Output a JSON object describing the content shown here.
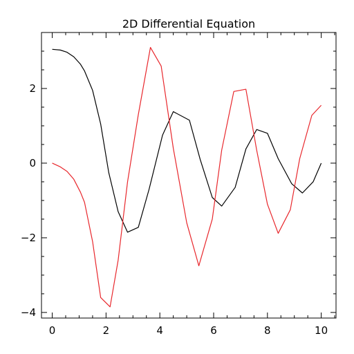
{
  "chart_data": {
    "type": "line",
    "title": "2D Differential Equation",
    "xlabel": "",
    "ylabel": "",
    "xlim": [
      -0.4,
      10.55
    ],
    "ylim": [
      -4.15,
      3.5
    ],
    "xticks": [
      0,
      2,
      4,
      6,
      8,
      10
    ],
    "xtick_labels": [
      "0",
      "2",
      "4",
      "6",
      "8",
      "10"
    ],
    "yticks": [
      -4,
      -2,
      0,
      2
    ],
    "ytick_labels": [
      "−4",
      "−2",
      "0",
      "2"
    ],
    "x_minor_step": 0.5,
    "y_minor_step": 0.5,
    "grid": false,
    "series": [
      {
        "color": "#000000",
        "x": [
          0,
          0.3,
          0.55,
          0.8,
          1.05,
          1.2,
          1.5,
          1.8,
          2.1,
          2.45,
          2.8,
          3.2,
          3.6,
          4.1,
          4.5,
          5.1,
          5.5,
          5.95,
          6.3,
          6.8,
          7.2,
          7.6,
          8.0,
          8.4,
          8.9,
          9.3,
          9.7,
          10.0
        ],
        "y": [
          3.05,
          3.03,
          2.97,
          2.85,
          2.65,
          2.47,
          1.95,
          1.05,
          -0.25,
          -1.3,
          -1.85,
          -1.72,
          -0.7,
          0.75,
          1.38,
          1.15,
          0.1,
          -0.92,
          -1.15,
          -0.65,
          0.38,
          0.9,
          0.8,
          0.12,
          -0.55,
          -0.8,
          -0.5,
          0.0
        ]
      },
      {
        "color": "#e8262b",
        "x": [
          0,
          0.3,
          0.55,
          0.8,
          1.05,
          1.2,
          1.5,
          1.8,
          2.15,
          2.45,
          2.8,
          3.2,
          3.65,
          4.05,
          4.5,
          5.0,
          5.45,
          5.95,
          6.3,
          6.75,
          7.2,
          7.6,
          8.0,
          8.4,
          8.85,
          9.2,
          9.65,
          10.0
        ],
        "y": [
          0.0,
          -0.1,
          -0.22,
          -0.43,
          -0.78,
          -1.05,
          -2.1,
          -3.6,
          -3.85,
          -2.6,
          -0.5,
          1.3,
          3.1,
          2.6,
          0.4,
          -1.6,
          -2.75,
          -1.5,
          0.35,
          1.92,
          1.98,
          0.35,
          -1.1,
          -1.88,
          -1.25,
          0.12,
          1.28,
          1.55
        ]
      }
    ]
  }
}
